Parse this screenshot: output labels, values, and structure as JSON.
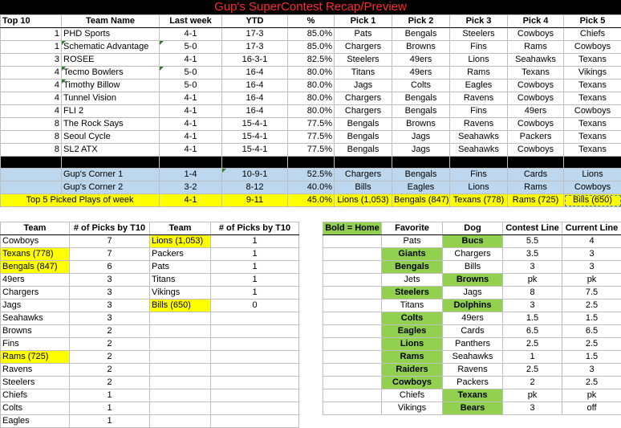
{
  "title": "Gup's SuperContest Recap/Preview",
  "top_table": {
    "headers": [
      "Top 10",
      "Team Name",
      "Last week",
      "YTD",
      "%",
      "Pick 1",
      "Pick 2",
      "Pick 3",
      "Pick 4",
      "Pick 5"
    ],
    "rows": [
      {
        "rank": "1",
        "team": "PHD Sports",
        "last": "4-1",
        "ytd": "17-3",
        "pct": "85.0%",
        "p1": "Pats",
        "p2": "Bengals",
        "p3": "Steelers",
        "p4": "Cowboys",
        "p5": "Chiefs"
      },
      {
        "rank": "1",
        "team": "Schematic Advantage",
        "last": "5-0",
        "ytd": "17-3",
        "pct": "85.0%",
        "p1": "Chargers",
        "p2": "Browns",
        "p3": "Fins",
        "p4": "Rams",
        "p5": "Cowboys"
      },
      {
        "rank": "3",
        "team": "ROSEE",
        "last": "4-1",
        "ytd": "16-3-1",
        "pct": "82.5%",
        "p1": "Steelers",
        "p2": "49ers",
        "p3": "Lions",
        "p4": "Seahawks",
        "p5": "Texans"
      },
      {
        "rank": "4",
        "team": "Tecmo Bowlers",
        "last": "5-0",
        "ytd": "16-4",
        "pct": "80.0%",
        "p1": "Titans",
        "p2": "49ers",
        "p3": "Rams",
        "p4": "Texans",
        "p5": "Vikings"
      },
      {
        "rank": "4",
        "team": "Timothy Billow",
        "last": "5-0",
        "ytd": "16-4",
        "pct": "80.0%",
        "p1": "Jags",
        "p2": "Colts",
        "p3": "Eagles",
        "p4": "Cowboys",
        "p5": "Texans"
      },
      {
        "rank": "4",
        "team": "Tunnel Vision",
        "last": "4-1",
        "ytd": "16-4",
        "pct": "80.0%",
        "p1": "Chargers",
        "p2": "Bengals",
        "p3": "Ravens",
        "p4": "Cowboys",
        "p5": "Texans"
      },
      {
        "rank": "4",
        "team": "FLI 2",
        "last": "4-1",
        "ytd": "16-4",
        "pct": "80.0%",
        "p1": "Chargers",
        "p2": "Bengals",
        "p3": "Fins",
        "p4": "49ers",
        "p5": "Cowboys"
      },
      {
        "rank": "8",
        "team": "The Rock Says",
        "last": "4-1",
        "ytd": "15-4-1",
        "pct": "77.5%",
        "p1": "Bengals",
        "p2": "Browns",
        "p3": "Ravens",
        "p4": "Cowboys",
        "p5": "Texans"
      },
      {
        "rank": "8",
        "team": "Seoul Cycle",
        "last": "4-1",
        "ytd": "15-4-1",
        "pct": "77.5%",
        "p1": "Bengals",
        "p2": "Jags",
        "p3": "Seahawks",
        "p4": "Packers",
        "p5": "Texans"
      },
      {
        "rank": "8",
        "team": "SL2 ATX",
        "last": "4-1",
        "ytd": "15-4-1",
        "pct": "77.5%",
        "p1": "Bengals",
        "p2": "Jags",
        "p3": "Seahawks",
        "p4": "Cowboys",
        "p5": "Texans"
      }
    ],
    "corner_rows": [
      {
        "team": "Gup's Corner 1",
        "last": "1-4",
        "ytd": "10-9-1",
        "pct": "52.5%",
        "p1": "Chargers",
        "p2": "Bengals",
        "p3": "Fins",
        "p4": "Cards",
        "p5": "Lions"
      },
      {
        "team": "Gup's Corner 2",
        "last": "3-2",
        "ytd": "8-12",
        "pct": "40.0%",
        "p1": "Bills",
        "p2": "Eagles",
        "p3": "Lions",
        "p4": "Rams",
        "p5": "Cowboys"
      }
    ],
    "top5_row": {
      "label": "Top 5 Picked Plays of week",
      "last": "4-1",
      "ytd": "9-11",
      "pct": "45.0%",
      "p1": "Lions (1,053)",
      "p2": "Bengals (847)",
      "p3": "Texans (778)",
      "p4": "Rams (725)",
      "p5": "Bills (650)"
    }
  },
  "picks_table": {
    "headers": [
      "Team",
      "# of Picks by T10",
      "Team",
      "# of Picks by T10"
    ],
    "left": [
      {
        "team": "Cowboys",
        "n": "7",
        "hl": false
      },
      {
        "team": "Texans (778)",
        "n": "7",
        "hl": true
      },
      {
        "team": "Bengals (847)",
        "n": "6",
        "hl": true
      },
      {
        "team": "49ers",
        "n": "3",
        "hl": false
      },
      {
        "team": "Chargers",
        "n": "3",
        "hl": false
      },
      {
        "team": "Jags",
        "n": "3",
        "hl": false
      },
      {
        "team": "Seahawks",
        "n": "3",
        "hl": false
      },
      {
        "team": "Browns",
        "n": "2",
        "hl": false
      },
      {
        "team": "Fins",
        "n": "2",
        "hl": false
      },
      {
        "team": "Rams (725)",
        "n": "2",
        "hl": true
      },
      {
        "team": "Ravens",
        "n": "2",
        "hl": false
      },
      {
        "team": "Steelers",
        "n": "2",
        "hl": false
      },
      {
        "team": "Chiefs",
        "n": "1",
        "hl": false
      },
      {
        "team": "Colts",
        "n": "1",
        "hl": false
      },
      {
        "team": "Eagles",
        "n": "1",
        "hl": false
      }
    ],
    "right": [
      {
        "team": "Lions (1,053)",
        "n": "1",
        "hl": true
      },
      {
        "team": "Packers",
        "n": "1",
        "hl": false
      },
      {
        "team": "Pats",
        "n": "1",
        "hl": false
      },
      {
        "team": "Titans",
        "n": "1",
        "hl": false
      },
      {
        "team": "Vikings",
        "n": "1",
        "hl": false
      },
      {
        "team": "Bills (650)",
        "n": "0",
        "hl": true
      }
    ]
  },
  "lines_table": {
    "legend": "Bold = Home",
    "headers": [
      "Favorite",
      "Dog",
      "Contest Line",
      "Current Line"
    ],
    "rows": [
      {
        "fav": "Pats",
        "dog": "Bucs",
        "cl": "5.5",
        "cur": "4",
        "home": "dog"
      },
      {
        "fav": "Giants",
        "dog": "Chargers",
        "cl": "3.5",
        "cur": "3",
        "home": "fav"
      },
      {
        "fav": "Bengals",
        "dog": "Bills",
        "cl": "3",
        "cur": "3",
        "home": "fav"
      },
      {
        "fav": "Jets",
        "dog": "Browns",
        "cl": "pk",
        "cur": "pk",
        "home": "dog"
      },
      {
        "fav": "Steelers",
        "dog": "Jags",
        "cl": "8",
        "cur": "7.5",
        "home": "fav"
      },
      {
        "fav": "Titans",
        "dog": "Dolphins",
        "cl": "3",
        "cur": "2.5",
        "home": "dog"
      },
      {
        "fav": "Colts",
        "dog": "49ers",
        "cl": "1.5",
        "cur": "1.5",
        "home": "fav"
      },
      {
        "fav": "Eagles",
        "dog": "Cards",
        "cl": "6.5",
        "cur": "6.5",
        "home": "fav"
      },
      {
        "fav": "Lions",
        "dog": "Panthers",
        "cl": "2.5",
        "cur": "2.5",
        "home": "fav"
      },
      {
        "fav": "Rams",
        "dog": "Seahawks",
        "cl": "1",
        "cur": "1.5",
        "home": "fav"
      },
      {
        "fav": "Raiders",
        "dog": "Ravens",
        "cl": "2.5",
        "cur": "3",
        "home": "fav"
      },
      {
        "fav": "Cowboys",
        "dog": "Packers",
        "cl": "2",
        "cur": "2.5",
        "home": "fav"
      },
      {
        "fav": "Chiefs",
        "dog": "Texans",
        "cl": "pk",
        "cur": "pk",
        "home": "dog"
      },
      {
        "fav": "Vikings",
        "dog": "Bears",
        "cl": "3",
        "cur": "off",
        "home": "dog"
      }
    ]
  },
  "colors": {
    "title_bg": "#000000",
    "title_fg": "#ff2a2a",
    "corner_bg": "#bdd7ee",
    "highlight": "#ffff00",
    "home": "#92d050"
  }
}
